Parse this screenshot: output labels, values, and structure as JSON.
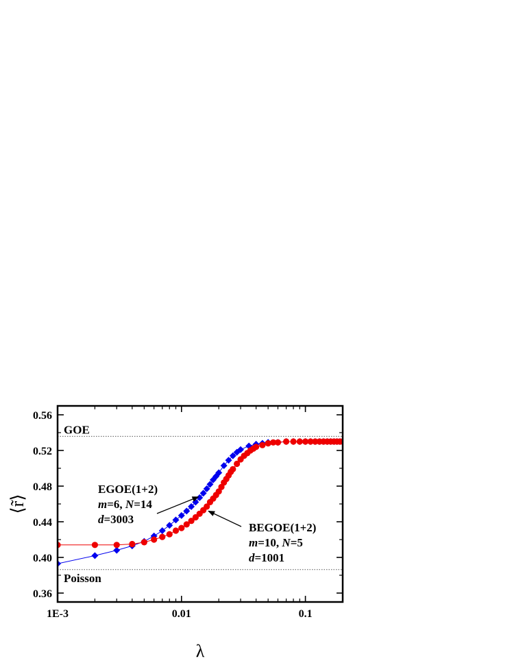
{
  "chart_data": {
    "type": "scatter",
    "xlabel": "λ",
    "ylabel": "⟨r̃⟩",
    "xscale": "log",
    "xlim": [
      0.001,
      0.2
    ],
    "ylim": [
      0.35,
      0.57
    ],
    "xticks": [
      {
        "value": 0.001,
        "label": "1E-3"
      },
      {
        "value": 0.01,
        "label": "0.01"
      },
      {
        "value": 0.1,
        "label": "0.1"
      }
    ],
    "yticks": [
      0.36,
      0.4,
      0.44,
      0.48,
      0.52,
      0.56
    ],
    "ytick_labels": [
      "0.36",
      "0.40",
      "0.44",
      "0.48",
      "0.52",
      "0.56"
    ],
    "grid": false,
    "reference_lines": [
      {
        "label": "GOE",
        "y": 0.5359
      },
      {
        "label": "Poisson",
        "y": 0.3863
      }
    ],
    "series": [
      {
        "color": "#0000ee",
        "marker": "diamond",
        "x": [
          0.001,
          0.002,
          0.003,
          0.004,
          0.005,
          0.006,
          0.007,
          0.008,
          0.009,
          0.01,
          0.011,
          0.012,
          0.013,
          0.014,
          0.015,
          0.016,
          0.017,
          0.018,
          0.019,
          0.02,
          0.022,
          0.024,
          0.026,
          0.028,
          0.03,
          0.035,
          0.04,
          0.045,
          0.05,
          0.06,
          0.07,
          0.08,
          0.09,
          0.1,
          0.11,
          0.12,
          0.13,
          0.14,
          0.15,
          0.16,
          0.17,
          0.18,
          0.19,
          0.2
        ],
        "y": [
          0.393,
          0.402,
          0.408,
          0.413,
          0.418,
          0.424,
          0.43,
          0.436,
          0.442,
          0.447,
          0.452,
          0.457,
          0.462,
          0.467,
          0.472,
          0.477,
          0.482,
          0.487,
          0.491,
          0.495,
          0.503,
          0.509,
          0.514,
          0.518,
          0.521,
          0.525,
          0.527,
          0.528,
          0.529,
          0.529,
          0.53,
          0.53,
          0.53,
          0.53,
          0.53,
          0.53,
          0.53,
          0.53,
          0.53,
          0.53,
          0.53,
          0.53,
          0.53,
          0.53
        ]
      },
      {
        "color": "#ee0000",
        "marker": "circle",
        "x": [
          0.001,
          0.002,
          0.003,
          0.004,
          0.005,
          0.006,
          0.007,
          0.008,
          0.009,
          0.01,
          0.011,
          0.012,
          0.013,
          0.014,
          0.015,
          0.016,
          0.017,
          0.018,
          0.019,
          0.02,
          0.021,
          0.022,
          0.023,
          0.024,
          0.025,
          0.026,
          0.028,
          0.03,
          0.032,
          0.034,
          0.036,
          0.038,
          0.04,
          0.045,
          0.05,
          0.055,
          0.06,
          0.07,
          0.08,
          0.09,
          0.1,
          0.11,
          0.12,
          0.13,
          0.14,
          0.15,
          0.16,
          0.17,
          0.18,
          0.19,
          0.2
        ],
        "y": [
          0.414,
          0.414,
          0.414,
          0.415,
          0.417,
          0.42,
          0.423,
          0.426,
          0.43,
          0.433,
          0.437,
          0.441,
          0.445,
          0.449,
          0.453,
          0.457,
          0.462,
          0.466,
          0.47,
          0.474,
          0.479,
          0.484,
          0.488,
          0.492,
          0.496,
          0.499,
          0.505,
          0.51,
          0.514,
          0.517,
          0.52,
          0.522,
          0.524,
          0.526,
          0.528,
          0.529,
          0.529,
          0.53,
          0.53,
          0.53,
          0.53,
          0.53,
          0.53,
          0.53,
          0.53,
          0.53,
          0.53,
          0.53,
          0.53,
          0.53,
          0.53
        ]
      }
    ],
    "annotations": [
      {
        "lines": [
          [
            {
              "t": "EGOE(1+2)",
              "i": false
            }
          ],
          [
            {
              "t": "m",
              "i": true
            },
            {
              "t": "=6, ",
              "i": false
            },
            {
              "t": "N",
              "i": true
            },
            {
              "t": "=14",
              "i": false
            }
          ],
          [
            {
              "t": "d",
              "i": true
            },
            {
              "t": "=3003",
              "i": false
            }
          ]
        ],
        "arrow_to": {
          "x": 0.0137,
          "y": 0.468
        }
      },
      {
        "lines": [
          [
            {
              "t": "BEGOE(1+2)",
              "i": false
            }
          ],
          [
            {
              "t": "m",
              "i": true
            },
            {
              "t": "=10, ",
              "i": false
            },
            {
              "t": "N",
              "i": true
            },
            {
              "t": "=5",
              "i": false
            }
          ],
          [
            {
              "t": "d",
              "i": true
            },
            {
              "t": "=1001",
              "i": false
            }
          ]
        ],
        "arrow_to": {
          "x": 0.0165,
          "y": 0.452
        }
      }
    ]
  }
}
